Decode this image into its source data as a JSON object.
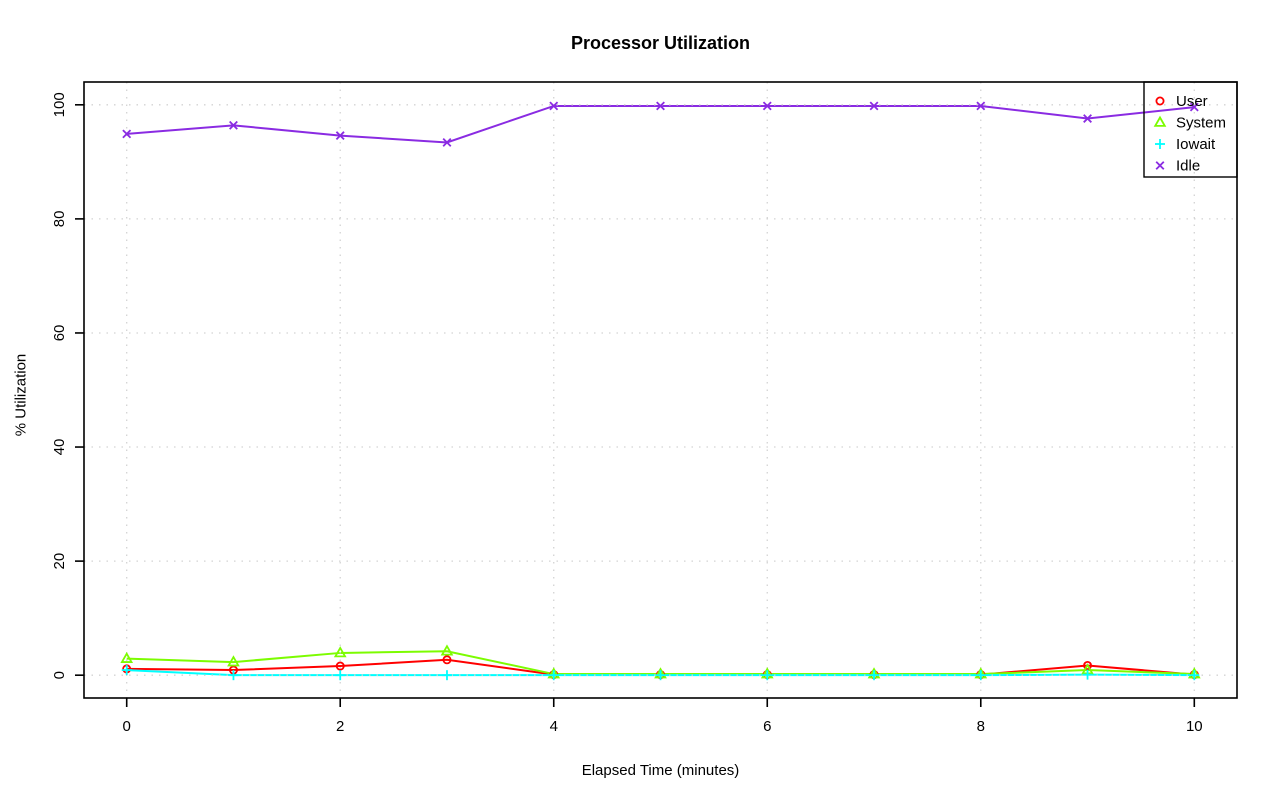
{
  "chart_data": {
    "type": "line",
    "title": "Processor Utilization",
    "xlabel": "Elapsed Time (minutes)",
    "ylabel": "% Utilization",
    "x": [
      0,
      1,
      2,
      3,
      4,
      5,
      6,
      7,
      8,
      9,
      10
    ],
    "xticks": [
      0,
      2,
      4,
      6,
      8,
      10
    ],
    "yticks": [
      0,
      20,
      40,
      60,
      80,
      100
    ],
    "xlim": [
      0,
      10
    ],
    "ylim": [
      0,
      100
    ],
    "grid": "dotted",
    "grid_color": "#d3d3d3",
    "legend_position": "topright",
    "series": [
      {
        "name": "User",
        "color": "#ff0000",
        "marker": "circle",
        "values": [
          1.1,
          0.9,
          1.6,
          2.7,
          0.1,
          0.1,
          0.1,
          0.1,
          0.1,
          1.7,
          0.1
        ]
      },
      {
        "name": "System",
        "color": "#7cfc00",
        "marker": "triangle-up",
        "values": [
          2.9,
          2.3,
          3.9,
          4.2,
          0.2,
          0.2,
          0.2,
          0.2,
          0.2,
          0.9,
          0.2
        ]
      },
      {
        "name": "Iowait",
        "color": "#00ffff",
        "marker": "plus",
        "values": [
          0.9,
          0.0,
          0.0,
          0.0,
          0.0,
          0.0,
          0.0,
          0.0,
          0.0,
          0.1,
          0.0
        ]
      },
      {
        "name": "Idle",
        "color": "#8a2be2",
        "marker": "x",
        "values": [
          94.9,
          96.4,
          94.6,
          93.4,
          99.8,
          99.8,
          99.8,
          99.8,
          99.8,
          97.6,
          99.6
        ]
      }
    ]
  }
}
